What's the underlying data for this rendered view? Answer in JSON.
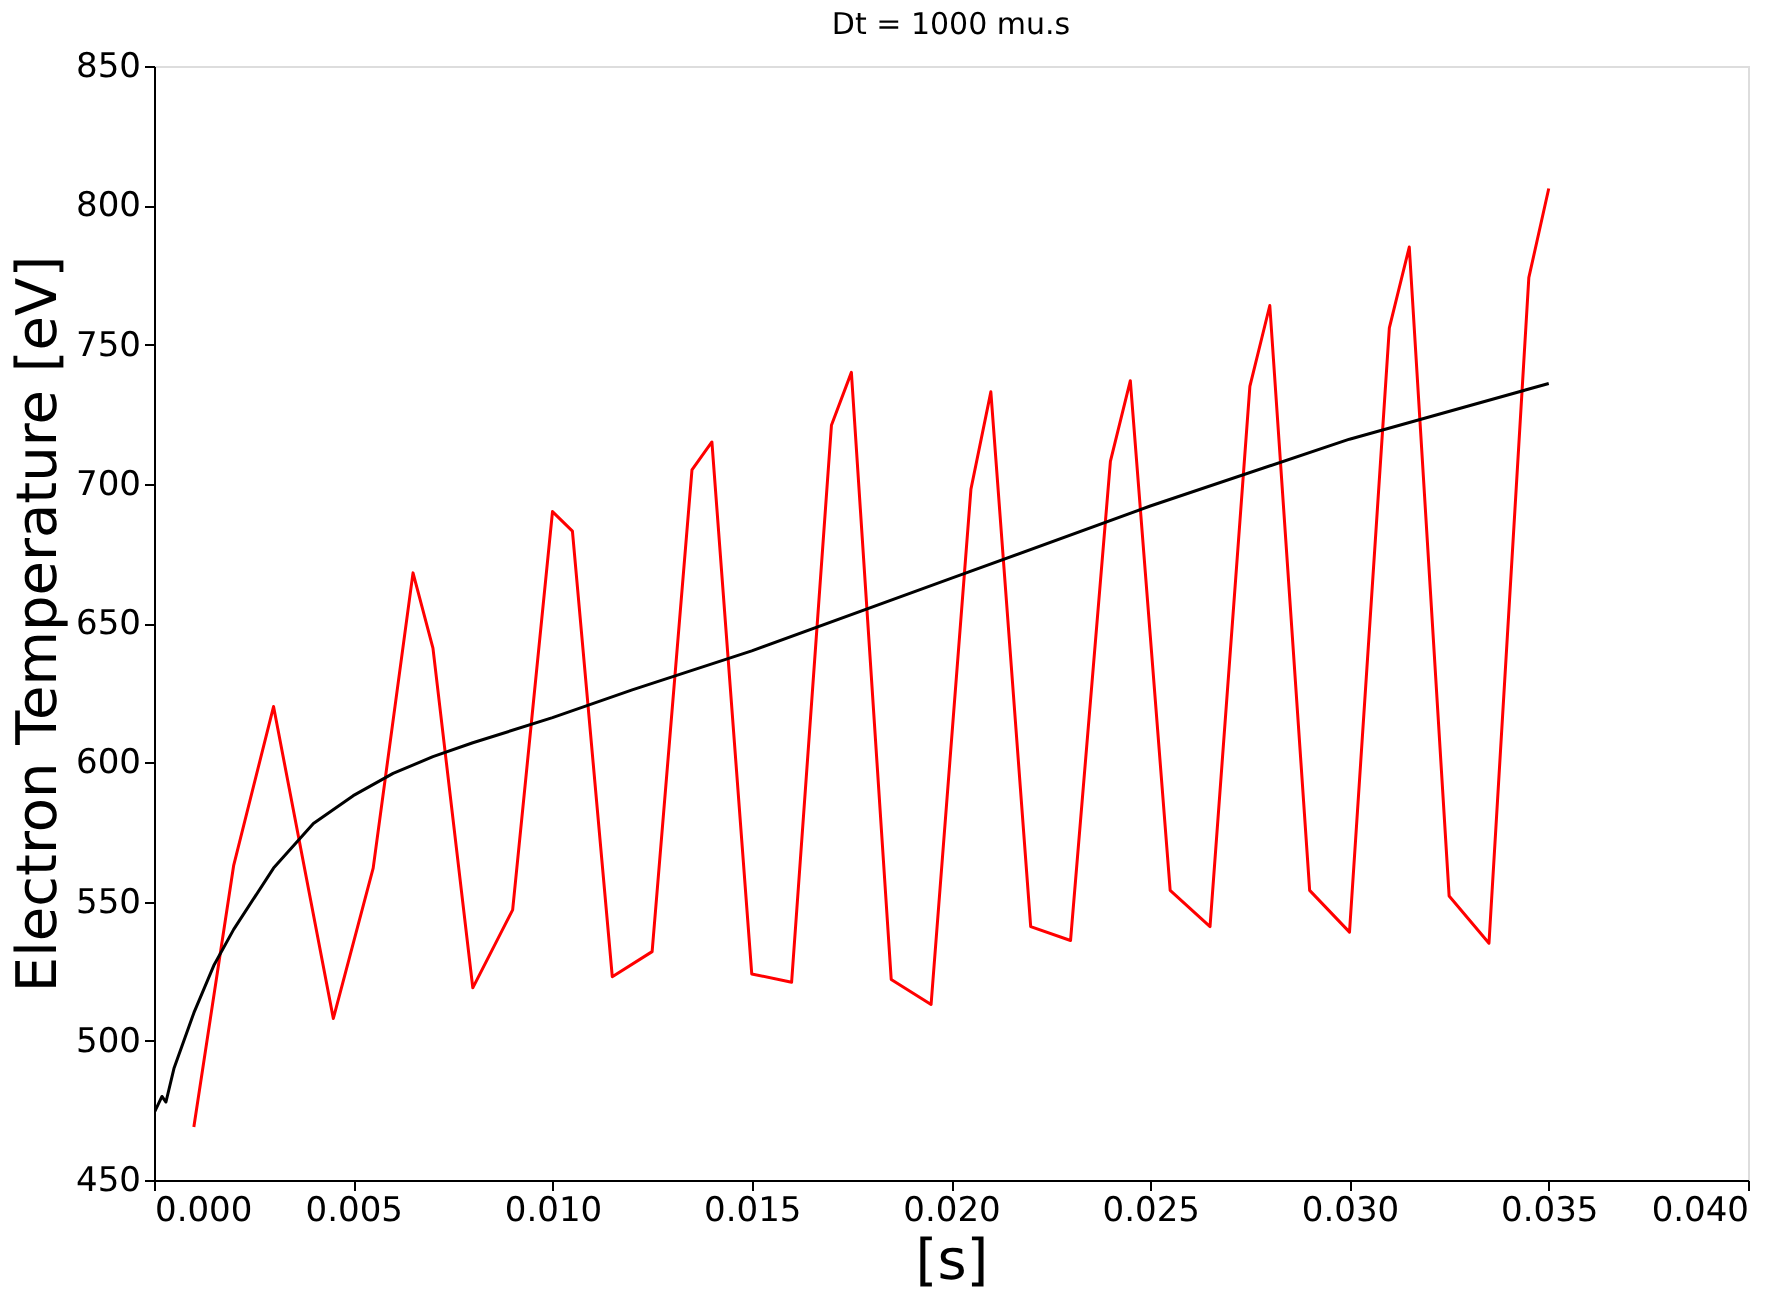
{
  "chart_data": {
    "type": "line",
    "title": "Dt = 1000 mu.s",
    "xlabel": "[s]",
    "ylabel": "Electron Temperature [eV]",
    "xlim": [
      0,
      0.04
    ],
    "ylim": [
      450,
      850
    ],
    "xticks": [
      {
        "value": 0,
        "label": "0.000"
      },
      {
        "value": 0.005,
        "label": "0.005"
      },
      {
        "value": 0.01,
        "label": "0.010"
      },
      {
        "value": 0.015,
        "label": "0.015"
      },
      {
        "value": 0.02,
        "label": "0.020"
      },
      {
        "value": 0.025,
        "label": "0.025"
      },
      {
        "value": 0.03,
        "label": "0.030"
      },
      {
        "value": 0.035,
        "label": "0.035"
      },
      {
        "value": 0.04,
        "label": "0.040"
      }
    ],
    "yticks": [
      450,
      500,
      550,
      600,
      650,
      700,
      750,
      800,
      850
    ],
    "grid": false,
    "marker": "none",
    "line_style": "solid",
    "series": [
      {
        "color": "#ff0000",
        "x": [
          0.001,
          0.002,
          0.003,
          0.0045,
          0.0055,
          0.0065,
          0.007,
          0.008,
          0.009,
          0.01,
          0.0105,
          0.0115,
          0.0125,
          0.0135,
          0.014,
          0.015,
          0.016,
          0.017,
          0.0175,
          0.0185,
          0.0195,
          0.0205,
          0.021,
          0.022,
          0.023,
          0.024,
          0.0245,
          0.0255,
          0.0265,
          0.0275,
          0.028,
          0.029,
          0.03,
          0.031,
          0.0315,
          0.0325,
          0.0335,
          0.0345,
          0.035
        ],
        "values": [
          469,
          563,
          620,
          508,
          562,
          668,
          641,
          519,
          547,
          690,
          683,
          523,
          532,
          705,
          715,
          524,
          521,
          721,
          740,
          522,
          513,
          698,
          733,
          541,
          536,
          708,
          737,
          554,
          541,
          735,
          764,
          554,
          539,
          756,
          785,
          552,
          535,
          774,
          806
        ]
      },
      {
        "color": "#000000",
        "x": [
          0,
          0.0002,
          0.0003,
          0.0005,
          0.001,
          0.0015,
          0.002,
          0.003,
          0.004,
          0.005,
          0.006,
          0.007,
          0.008,
          0.01,
          0.012,
          0.015,
          0.02,
          0.025,
          0.03,
          0.035
        ],
        "values": [
          474,
          480,
          478,
          490,
          510,
          527,
          540,
          562,
          578,
          588,
          596,
          602,
          607,
          616,
          626,
          640,
          666,
          692,
          716,
          736
        ]
      }
    ]
  }
}
